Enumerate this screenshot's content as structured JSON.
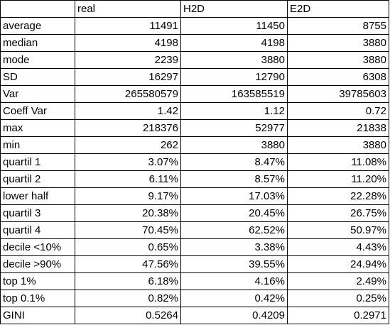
{
  "table": {
    "columns": [
      "",
      "real",
      "H2D",
      "E2D"
    ],
    "rows": [
      {
        "label": "average",
        "values": [
          "11491",
          "11450",
          "8755"
        ]
      },
      {
        "label": "median",
        "values": [
          "4198",
          "4198",
          "3880"
        ]
      },
      {
        "label": "mode",
        "values": [
          "2239",
          "3880",
          "3880"
        ]
      },
      {
        "label": "SD",
        "values": [
          "16297",
          "12790",
          "6308"
        ]
      },
      {
        "label": "Var",
        "values": [
          "265580579",
          "163585519",
          "39785603"
        ]
      },
      {
        "label": "Coeff Var",
        "values": [
          "1.42",
          "1.12",
          "0.72"
        ]
      },
      {
        "label": "max",
        "values": [
          "218376",
          "52977",
          "21838"
        ]
      },
      {
        "label": "min",
        "values": [
          "262",
          "3880",
          "3880"
        ]
      },
      {
        "label": "quartil 1",
        "values": [
          "3.07%",
          "8.47%",
          "11.08%"
        ]
      },
      {
        "label": "quartil 2",
        "values": [
          "6.11%",
          "8.57%",
          "11.20%"
        ]
      },
      {
        "label": "lower half",
        "values": [
          "9.17%",
          "17.03%",
          "22.28%"
        ]
      },
      {
        "label": "quartil 3",
        "values": [
          "20.38%",
          "20.45%",
          "26.75%"
        ]
      },
      {
        "label": "quartil 4",
        "values": [
          "70.45%",
          "62.52%",
          "50.97%"
        ]
      },
      {
        "label": "decile <10%",
        "values": [
          "0.65%",
          "3.38%",
          "4.43%"
        ]
      },
      {
        "label": "decile >90%",
        "values": [
          "47.56%",
          "39.55%",
          "24.94%"
        ]
      },
      {
        "label": "top 1%",
        "values": [
          "6.18%",
          "4.16%",
          "2.49%"
        ]
      },
      {
        "label": "top 0.1%",
        "values": [
          "0.82%",
          "0.42%",
          "0.25%"
        ]
      },
      {
        "label": "GINI",
        "values": [
          "0.5264",
          "0.4209",
          "0.2971"
        ]
      }
    ]
  }
}
